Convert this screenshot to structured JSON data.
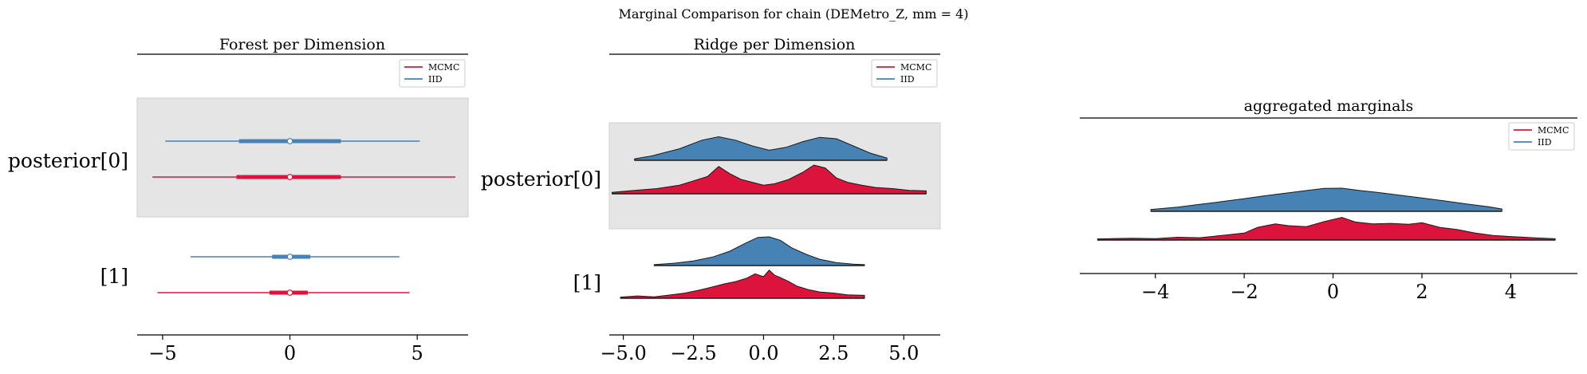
{
  "suptitle": "Marginal Comparison for chain (DEMetro_Z, mm = 4)",
  "colors": {
    "mcmc": "#dc143c",
    "iid": "#4682b4",
    "shade": "#e5e5e5"
  },
  "chart_data": [
    {
      "type": "forest",
      "title": "Forest per Dimension",
      "xlim": [
        -6,
        7
      ],
      "xticks": [
        "−5",
        "0",
        "5"
      ],
      "xtick_values": [
        -5,
        0,
        5
      ],
      "ytick_labels": [
        "posterior[0]",
        "[1]"
      ],
      "legend": {
        "placement": "upper right",
        "entries": [
          "MCMC",
          "IID"
        ]
      },
      "series": [
        {
          "name": "IID",
          "dimension": "posterior[0]",
          "median": 0.0,
          "iqr": [
            -2.0,
            2.0
          ],
          "range": [
            -4.9,
            5.1
          ]
        },
        {
          "name": "MCMC",
          "dimension": "posterior[0]",
          "median": 0.0,
          "iqr": [
            -2.1,
            2.0
          ],
          "range": [
            -5.4,
            6.5
          ]
        },
        {
          "name": "IID",
          "dimension": "[1]",
          "median": 0.0,
          "iqr": [
            -0.7,
            0.8
          ],
          "range": [
            -3.9,
            4.3
          ]
        },
        {
          "name": "MCMC",
          "dimension": "[1]",
          "median": 0.0,
          "iqr": [
            -0.8,
            0.7
          ],
          "range": [
            -5.2,
            4.7
          ]
        }
      ]
    },
    {
      "type": "ridge",
      "title": "Ridge per Dimension",
      "xlim": [
        -5.5,
        6.3
      ],
      "xticks": [
        "−5.0",
        "−2.5",
        "0.0",
        "2.5",
        "5.0"
      ],
      "xtick_values": [
        -5.0,
        -2.5,
        0.0,
        2.5,
        5.0
      ],
      "ytick_labels": [
        "posterior[0]",
        "[1]"
      ],
      "legend": {
        "placement": "upper right",
        "entries": [
          "MCMC",
          "IID"
        ]
      },
      "series": [
        {
          "name": "IID",
          "dimension": "posterior[0]",
          "x": [
            -4.6,
            -4.0,
            -3.0,
            -2.2,
            -1.6,
            -1.0,
            -0.4,
            0.2,
            0.8,
            1.4,
            2.0,
            2.6,
            3.2,
            3.8,
            4.4
          ],
          "density": [
            0.05,
            0.15,
            0.4,
            0.7,
            0.82,
            0.7,
            0.5,
            0.35,
            0.45,
            0.65,
            0.8,
            0.75,
            0.5,
            0.25,
            0.08
          ]
        },
        {
          "name": "MCMC",
          "dimension": "posterior[0]",
          "x": [
            -5.4,
            -4.6,
            -3.8,
            -3.0,
            -2.5,
            -2.0,
            -1.6,
            -1.2,
            -0.8,
            -0.4,
            0.0,
            0.4,
            0.9,
            1.4,
            1.8,
            2.2,
            2.6,
            3.0,
            3.5,
            4.0,
            4.6,
            5.2,
            5.8
          ],
          "density": [
            0.05,
            0.12,
            0.18,
            0.3,
            0.45,
            0.6,
            0.95,
            0.7,
            0.5,
            0.4,
            0.3,
            0.35,
            0.5,
            0.75,
            1.0,
            0.9,
            0.55,
            0.4,
            0.3,
            0.22,
            0.18,
            0.12,
            0.1
          ]
        },
        {
          "name": "IID",
          "dimension": "[1]",
          "x": [
            -3.9,
            -3.2,
            -2.5,
            -1.8,
            -1.2,
            -0.6,
            -0.2,
            0.2,
            0.6,
            1.0,
            1.5,
            2.0,
            2.6,
            3.2,
            3.6
          ],
          "density": [
            0.03,
            0.08,
            0.16,
            0.3,
            0.5,
            0.8,
            0.98,
            1.0,
            0.88,
            0.62,
            0.4,
            0.22,
            0.1,
            0.05,
            0.03
          ]
        },
        {
          "name": "MCMC",
          "dimension": "[1]",
          "x": [
            -5.1,
            -4.5,
            -3.9,
            -3.3,
            -2.8,
            -2.3,
            -1.8,
            -1.4,
            -1.0,
            -0.6,
            -0.3,
            0.0,
            0.2,
            0.4,
            0.6,
            0.9,
            1.2,
            1.6,
            2.0,
            2.5,
            3.0,
            3.6
          ],
          "density": [
            0.04,
            0.08,
            0.05,
            0.12,
            0.18,
            0.28,
            0.4,
            0.5,
            0.58,
            0.7,
            0.85,
            0.75,
            0.98,
            0.8,
            0.72,
            0.58,
            0.42,
            0.3,
            0.22,
            0.18,
            0.12,
            0.1
          ]
        }
      ]
    },
    {
      "type": "ridge",
      "title": "aggregated marginals",
      "xlim": [
        -5.7,
        5.5
      ],
      "xticks": [
        "−4",
        "−2",
        "0",
        "2",
        "4"
      ],
      "xtick_values": [
        -4,
        -2,
        0,
        2,
        4
      ],
      "legend": {
        "placement": "upper right",
        "entries": [
          "MCMC",
          "IID"
        ]
      },
      "series": [
        {
          "name": "IID",
          "x": [
            -4.1,
            -3.5,
            -3.0,
            -2.5,
            -2.0,
            -1.5,
            -1.0,
            -0.5,
            -0.2,
            0.2,
            0.6,
            1.0,
            1.5,
            2.0,
            2.5,
            3.0,
            3.5,
            3.8
          ],
          "density": [
            0.08,
            0.18,
            0.3,
            0.42,
            0.55,
            0.68,
            0.8,
            0.92,
            0.99,
            1.0,
            0.9,
            0.82,
            0.7,
            0.58,
            0.45,
            0.32,
            0.2,
            0.1
          ]
        },
        {
          "name": "MCMC",
          "x": [
            -5.3,
            -4.5,
            -4.0,
            -3.5,
            -3.0,
            -2.5,
            -2.0,
            -1.7,
            -1.3,
            -1.0,
            -0.6,
            -0.2,
            0.2,
            0.5,
            0.9,
            1.3,
            1.7,
            2.0,
            2.4,
            2.8,
            3.2,
            3.6,
            4.0,
            4.5,
            5.0
          ],
          "density": [
            0.05,
            0.08,
            0.06,
            0.12,
            0.1,
            0.2,
            0.3,
            0.55,
            0.7,
            0.62,
            0.58,
            0.8,
            0.98,
            0.78,
            0.7,
            0.72,
            0.68,
            0.75,
            0.55,
            0.45,
            0.3,
            0.2,
            0.15,
            0.1,
            0.06
          ]
        }
      ]
    }
  ]
}
